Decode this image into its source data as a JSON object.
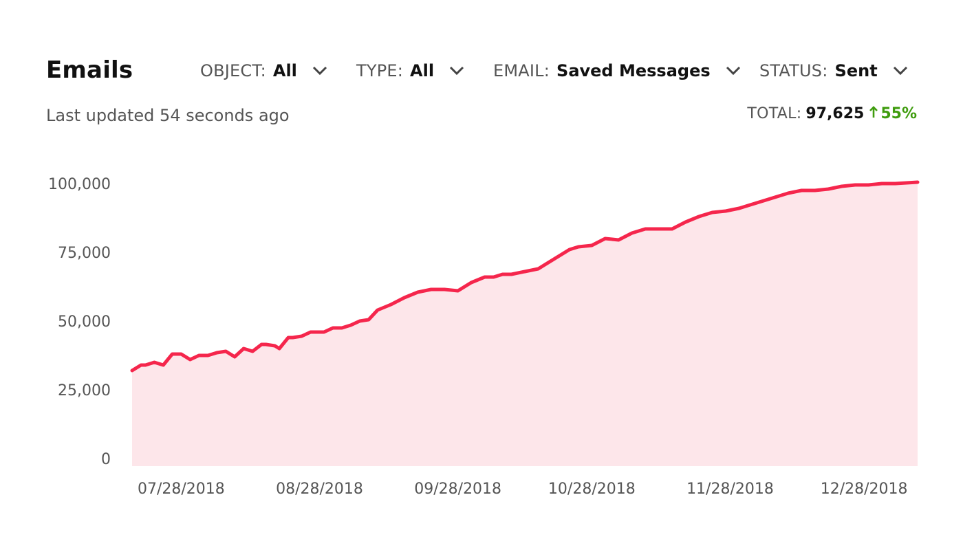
{
  "header": {
    "title": "Emails",
    "filters": [
      {
        "label": "OBJECT:",
        "value": "All"
      },
      {
        "label": "TYPE:",
        "value": "All"
      },
      {
        "label": "EMAIL:",
        "value": "Saved Messages"
      },
      {
        "label": "STATUS:",
        "value": "Sent"
      }
    ]
  },
  "status": {
    "last_updated": "Last updated 54 seconds ago"
  },
  "summary": {
    "total_label": "TOTAL:",
    "total_value": "97,625",
    "change": "55%",
    "change_direction": "up",
    "change_color": "#3f9c0e",
    "change_icon": "arrow-up-icon"
  },
  "chart_data": {
    "type": "area",
    "title": "",
    "xlabel": "",
    "ylabel": "",
    "ylim": [
      0,
      100000
    ],
    "yticks": [
      0,
      25000,
      50000,
      75000,
      100000
    ],
    "ytick_labels": [
      "0",
      "25,000",
      "50,000",
      "75,000",
      "100,000"
    ],
    "xlim": [
      "2018-07-17",
      "2019-01-09"
    ],
    "xticks": [
      "2018-07-28",
      "2018-08-28",
      "2018-09-28",
      "2018-10-28",
      "2018-11-28",
      "2018-12-28"
    ],
    "xtick_labels": [
      "07/28/2018",
      "08/28/2018",
      "09/28/2018",
      "10/28/2018",
      "11/28/2018",
      "12/28/2018"
    ],
    "grid": false,
    "line_color": "#f5264c",
    "fill_color": "#fde6ea",
    "series": [
      {
        "x": [
          "2018-07-17",
          "2018-07-19",
          "2018-07-20",
          "2018-07-22",
          "2018-07-24",
          "2018-07-26",
          "2018-07-28",
          "2018-07-30",
          "2018-08-01",
          "2018-08-03",
          "2018-08-04",
          "2018-08-05",
          "2018-08-07",
          "2018-08-09",
          "2018-08-11",
          "2018-08-13",
          "2018-08-15",
          "2018-08-16",
          "2018-08-18",
          "2018-08-19",
          "2018-08-21",
          "2018-08-22",
          "2018-08-24",
          "2018-08-26",
          "2018-08-28",
          "2018-08-29",
          "2018-08-31",
          "2018-09-02",
          "2018-09-04",
          "2018-09-06",
          "2018-09-08",
          "2018-09-10",
          "2018-09-13",
          "2018-09-16",
          "2018-09-19",
          "2018-09-22",
          "2018-09-25",
          "2018-09-28",
          "2018-10-01",
          "2018-10-04",
          "2018-10-06",
          "2018-10-08",
          "2018-10-10",
          "2018-10-13",
          "2018-10-16",
          "2018-10-18",
          "2018-10-21",
          "2018-10-23",
          "2018-10-25",
          "2018-10-28",
          "2018-10-31",
          "2018-11-03",
          "2018-11-06",
          "2018-11-09",
          "2018-11-12",
          "2018-11-15",
          "2018-11-18",
          "2018-11-21",
          "2018-11-24",
          "2018-11-27",
          "2018-11-30",
          "2018-12-02",
          "2018-12-05",
          "2018-12-08",
          "2018-12-11",
          "2018-12-14",
          "2018-12-17",
          "2018-12-20",
          "2018-12-23",
          "2018-12-26",
          "2018-12-29",
          "2019-01-01",
          "2019-01-04",
          "2019-01-09"
        ],
        "y": [
          32000,
          34000,
          34000,
          35000,
          34000,
          38000,
          38000,
          36000,
          37500,
          37500,
          38000,
          38500,
          39000,
          37000,
          40000,
          39000,
          41500,
          41500,
          41000,
          40000,
          44000,
          44000,
          44500,
          46000,
          46000,
          46000,
          47500,
          47500,
          48500,
          50000,
          50500,
          54000,
          56000,
          58500,
          60500,
          61500,
          61500,
          61000,
          64000,
          66000,
          66000,
          67000,
          67000,
          68000,
          69000,
          71000,
          74000,
          76000,
          77000,
          77500,
          80000,
          79500,
          82000,
          83500,
          83500,
          83500,
          86000,
          88000,
          89500,
          90000,
          91000,
          92000,
          93500,
          95000,
          96500,
          97500,
          97500,
          98000,
          99000,
          99500,
          99500,
          100000,
          100000,
          100500
        ]
      }
    ]
  }
}
